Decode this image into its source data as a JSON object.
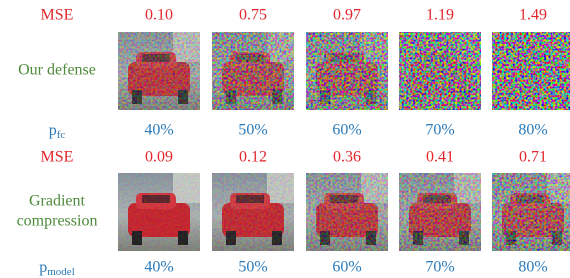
{
  "rows": [
    {
      "metric_label": "MSE",
      "metric_values": [
        "0.10",
        "0.75",
        "0.97",
        "1.19",
        "1.49"
      ],
      "method": [
        "Our defense"
      ],
      "param_label": {
        "base": "p",
        "sub": "fc"
      },
      "param_values": [
        "40%",
        "50%",
        "60%",
        "70%",
        "80%"
      ]
    },
    {
      "metric_label": "MSE",
      "metric_values": [
        "0.09",
        "0.12",
        "0.36",
        "0.41",
        "0.71"
      ],
      "method": [
        "Gradient",
        "compression"
      ],
      "param_label": {
        "base": "p",
        "sub": "model"
      },
      "param_values": [
        "40%",
        "50%",
        "60%",
        "70%",
        "80%"
      ]
    }
  ]
}
